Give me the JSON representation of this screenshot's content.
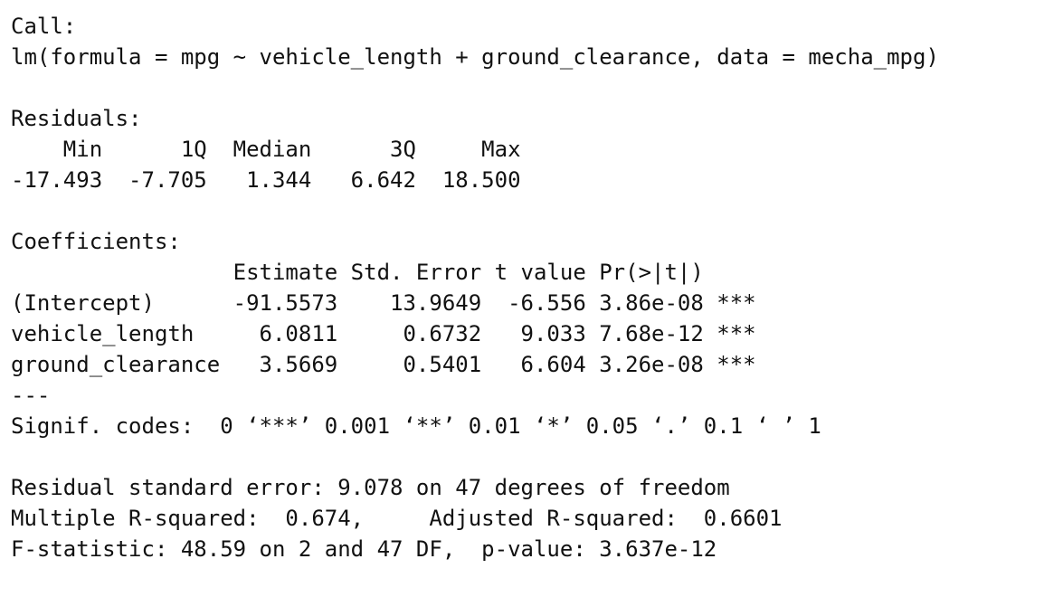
{
  "call": {
    "heading": "Call:",
    "formula": "lm(formula = mpg ~ vehicle_length + ground_clearance, data = mecha_mpg)"
  },
  "residuals": {
    "heading": "Residuals:",
    "header_row": "    Min      1Q  Median      3Q     Max ",
    "values_row": "-17.493  -7.705   1.344   6.642  18.500 "
  },
  "coefficients": {
    "heading": "Coefficients:",
    "header_row": "                 Estimate Std. Error t value Pr(>|t|)    ",
    "rows": [
      {
        "text": "(Intercept)      -91.5573    13.9649  -6.556 3.86e-08 ***"
      },
      {
        "text": "vehicle_length     6.0811     0.6732   9.033 7.68e-12 ***"
      },
      {
        "text": "ground_clearance   3.5669     0.5401   6.604 3.26e-08 ***"
      }
    ],
    "separator": "---",
    "signif_codes": "Signif. codes:  0 ‘***’ 0.001 ‘**’ 0.01 ‘*’ 0.05 ‘.’ 0.1 ‘ ’ 1"
  },
  "summary": {
    "residual_se": "Residual standard error: 9.078 on 47 degrees of freedom",
    "r_squared": "Multiple R-squared:  0.674,\tAdjusted R-squared:  0.6601 ",
    "f_statistic": "F-statistic: 48.59 on 2 and 47 DF,  p-value: 3.637e-12"
  }
}
